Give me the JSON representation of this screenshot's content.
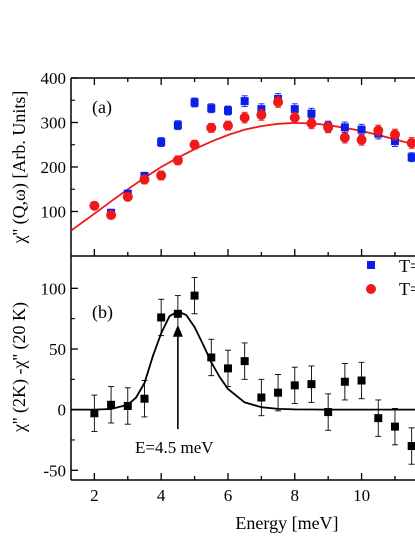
{
  "chart_data": [
    {
      "type": "scatter",
      "panel_label": "(a)",
      "ylabel": "χ'' (Q,ω) [Arb. Units]",
      "xlim": [
        1.3,
        11.6
      ],
      "ylim": [
        0,
        400
      ],
      "yticks": [
        100,
        200,
        300,
        400
      ],
      "legend_position": "bottom-right",
      "series": [
        {
          "name": "T=",
          "marker": "square",
          "color": "#0a1ee8",
          "x": [
            2.5,
            3.0,
            3.5,
            4.0,
            4.5,
            5.0,
            5.5,
            6.0,
            6.5,
            7.0,
            7.5,
            8.0,
            8.5,
            9.0,
            9.5,
            10.0,
            10.5,
            11.0,
            11.5
          ],
          "y": [
            97,
            140,
            180,
            256,
            294,
            345,
            332,
            327,
            348,
            330,
            353,
            330,
            320,
            291,
            289,
            284,
            275,
            258,
            222
          ],
          "err": [
            8,
            8,
            8,
            10,
            10,
            10,
            10,
            10,
            12,
            12,
            12,
            12,
            12,
            12,
            12,
            12,
            12,
            12,
            10
          ]
        },
        {
          "name": "T=",
          "marker": "circle",
          "color": "#f01818",
          "x": [
            2.0,
            2.5,
            3.0,
            3.5,
            4.0,
            4.5,
            5.0,
            5.5,
            6.0,
            6.5,
            7.0,
            7.5,
            8.0,
            8.5,
            9.0,
            9.5,
            10.0,
            10.5,
            11.0,
            11.5
          ],
          "y": [
            113,
            92,
            133,
            172,
            181,
            215,
            250,
            288,
            293,
            311,
            317,
            346,
            311,
            298,
            289,
            266,
            261,
            282,
            273,
            254
          ],
          "err": [
            8,
            8,
            8,
            10,
            10,
            10,
            10,
            10,
            10,
            12,
            12,
            12,
            12,
            12,
            12,
            12,
            12,
            12,
            12,
            12
          ]
        }
      ],
      "fit_curve": {
        "color": "#f01818",
        "x": [
          1.3,
          2.0,
          2.5,
          3.0,
          3.5,
          4.0,
          4.5,
          5.0,
          5.5,
          6.0,
          6.5,
          7.0,
          7.5,
          8.0,
          8.5,
          9.0,
          9.5,
          10.0,
          10.5,
          11.0,
          11.6
        ],
        "y": [
          57,
          95,
          123,
          150,
          176,
          200,
          221,
          240,
          257,
          272,
          284,
          292,
          297,
          299,
          298,
          294,
          288,
          281,
          272,
          262,
          250
        ]
      }
    },
    {
      "type": "scatter",
      "panel_label": "(b)",
      "xlabel": "Energy [meV]",
      "ylabel": "χ'' (2K) -χ'' (20 K)",
      "xlim": [
        1.3,
        11.6
      ],
      "ylim": [
        -58,
        125
      ],
      "yticks": [
        -50,
        0,
        50,
        100
      ],
      "xticks": [
        2,
        4,
        6,
        8,
        10
      ],
      "xtick_labels": [
        "2",
        "4",
        "6",
        "8",
        "10"
      ],
      "annotation": "E=4.5 meV",
      "arrow_x": 4.5,
      "series": [
        {
          "name": "",
          "marker": "square",
          "color": "#000000",
          "x": [
            2.0,
            2.5,
            3.0,
            3.5,
            4.0,
            4.5,
            5.0,
            5.5,
            6.0,
            6.5,
            7.0,
            7.5,
            8.0,
            8.5,
            9.0,
            9.5,
            10.0,
            10.5,
            11.0,
            11.5
          ],
          "y": [
            -3,
            4,
            3,
            9,
            76,
            79,
            94,
            43,
            34,
            40,
            10,
            14,
            20,
            21,
            -2,
            23,
            24,
            -7,
            -14,
            -30
          ],
          "err": [
            15,
            15,
            15,
            15,
            15,
            15,
            15,
            15,
            15,
            15,
            15,
            15,
            15,
            15,
            15,
            15,
            15,
            15,
            15,
            15
          ]
        }
      ],
      "fit_curve": {
        "color": "#000000",
        "x": [
          1.3,
          2.0,
          2.5,
          3.0,
          3.25,
          3.5,
          3.75,
          4.0,
          4.25,
          4.5,
          4.75,
          5.0,
          5.25,
          5.5,
          5.75,
          6.0,
          6.5,
          7.0,
          7.5,
          8.0,
          9.0,
          10.0,
          11.6
        ],
        "y": [
          0,
          0,
          0.5,
          4,
          10,
          22,
          44,
          63,
          77,
          81,
          78,
          68,
          54,
          39,
          27,
          17,
          6,
          2,
          0.6,
          0.2,
          0,
          0,
          0
        ]
      }
    }
  ]
}
